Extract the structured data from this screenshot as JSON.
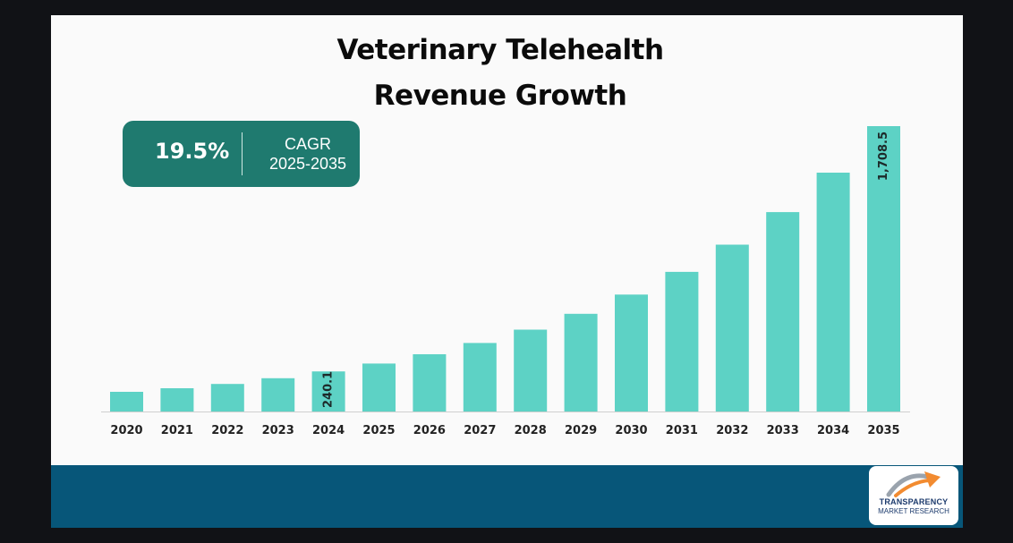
{
  "chart_data": {
    "type": "bar",
    "title_lines": [
      "Veterinary Telehealth",
      "Revenue Growth"
    ],
    "categories": [
      "2020",
      "2021",
      "2022",
      "2023",
      "2024",
      "2025",
      "2026",
      "2027",
      "2028",
      "2029",
      "2030",
      "2031",
      "2032",
      "2033",
      "2034",
      "2035"
    ],
    "values": [
      118,
      139,
      165,
      199,
      240.1,
      287,
      343,
      410,
      490,
      585,
      700,
      836,
      999,
      1194,
      1430,
      1708.5
    ],
    "data_labels": [
      {
        "category": "2024",
        "text": "240.1"
      },
      {
        "category": "2035",
        "text": "1,708.5"
      }
    ],
    "ylim": [
      0,
      1708.5
    ],
    "grid": false,
    "legend": "none",
    "xlabel": "",
    "ylabel": "",
    "bar_color": "#5dd2c5"
  },
  "cagr_box": {
    "value": "19.5%",
    "label_line1": "CAGR",
    "label_line2": "2025-2035",
    "color": "#1f7a6f"
  },
  "logo": {
    "name_line1": "TRANSPARENCY",
    "name_line2": "MARKET RESEARCH",
    "icon": "arrow-swoosh-icon"
  },
  "colors": {
    "footer": "#075679",
    "frame": "#111216"
  }
}
